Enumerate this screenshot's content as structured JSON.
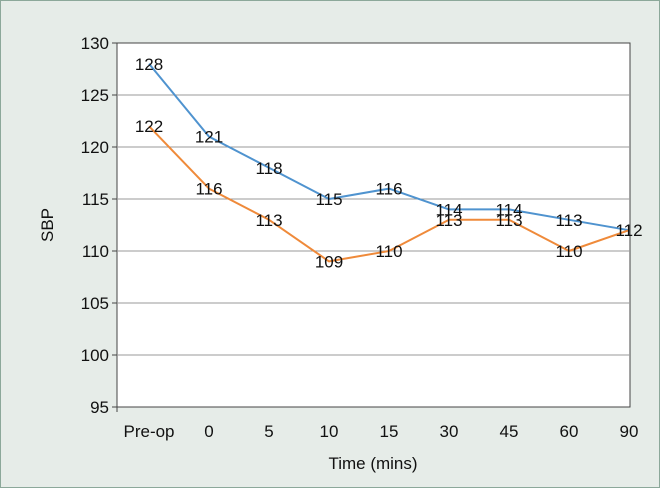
{
  "chart_data": {
    "type": "line",
    "xlabel": "Time (mins)",
    "ylabel": "SBP",
    "categories": [
      "Pre-op",
      "0",
      "5",
      "10",
      "15",
      "30",
      "45",
      "60",
      "90"
    ],
    "ylim": [
      95,
      130
    ],
    "yticks": [
      "95",
      "100",
      "105",
      "110",
      "115",
      "120",
      "125",
      "130"
    ],
    "grid": "horizontal",
    "legend": "none",
    "series": [
      {
        "color": "#4f93cf",
        "values": [
          128,
          121,
          118,
          115,
          116,
          114,
          114,
          113,
          112
        ],
        "labels": [
          "128",
          "121",
          "118",
          "115",
          "116",
          "114",
          "114",
          "113",
          "112"
        ]
      },
      {
        "color": "#ef8a3a",
        "values": [
          122,
          116,
          113,
          109,
          110,
          113,
          113,
          110,
          112
        ],
        "labels": [
          "122",
          "116",
          "113",
          "109",
          "110",
          "113",
          "113",
          "110",
          ""
        ]
      }
    ]
  }
}
